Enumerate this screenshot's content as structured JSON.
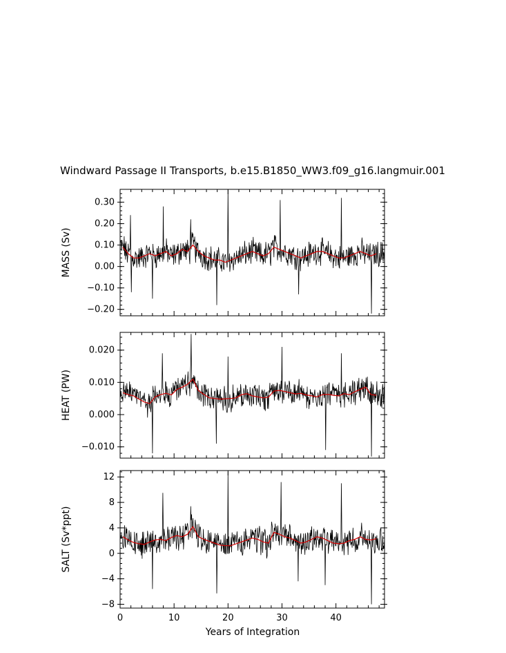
{
  "chart_data": {
    "title": "Windward Passage II Transports, b.e15.B1850_WW3.f09_g16.langmuir.001",
    "xlabel": "Years of Integration",
    "xlim": [
      0,
      49
    ],
    "x_ticks": [
      0,
      10,
      20,
      30,
      40
    ],
    "colors": {
      "monthly": "#000000",
      "annual": "#d40000"
    },
    "panels": [
      {
        "type": "line",
        "ylabel": "MASS (Sv)",
        "ylim": [
          -0.23,
          0.36
        ],
        "y_ticks": [
          -0.2,
          -0.1,
          0.0,
          0.1,
          0.2,
          0.3
        ],
        "y_tick_labels": [
          "−0.20",
          "−0.10",
          "0.00",
          "0.10",
          "0.20",
          "0.30"
        ],
        "annual": [
          0.09,
          0.06,
          0.04,
          0.04,
          0.05,
          0.06,
          0.05,
          0.06,
          0.07,
          0.05,
          0.06,
          0.08,
          0.07,
          0.1,
          0.07,
          0.05,
          0.04,
          0.03,
          0.03,
          0.02,
          0.03,
          0.04,
          0.05,
          0.06,
          0.07,
          0.06,
          0.05,
          0.06,
          0.09,
          0.08,
          0.07,
          0.06,
          0.05,
          0.04,
          0.05,
          0.06,
          0.07,
          0.07,
          0.06,
          0.05,
          0.04,
          0.04,
          0.05,
          0.06,
          0.07,
          0.06,
          0.05,
          0.06
        ],
        "spikes": [
          [
            1.9,
            0.24
          ],
          [
            8.0,
            0.28
          ],
          [
            13.1,
            0.22
          ],
          [
            20.0,
            0.36
          ],
          [
            29.7,
            0.31
          ],
          [
            41.0,
            0.32
          ],
          [
            2.1,
            -0.12
          ],
          [
            6.0,
            -0.15
          ],
          [
            17.9,
            -0.18
          ],
          [
            33.1,
            -0.13
          ],
          [
            46.6,
            -0.22
          ]
        ]
      },
      {
        "type": "line",
        "ylabel": "HEAT (PW)",
        "ylim": [
          -0.0135,
          0.0255
        ],
        "y_ticks": [
          -0.01,
          0.0,
          0.01,
          0.02
        ],
        "y_tick_labels": [
          "−0.010",
          "0.000",
          "0.010",
          "0.020"
        ],
        "annual": [
          0.0068,
          0.0062,
          0.0058,
          0.0048,
          0.0039,
          0.0034,
          0.0055,
          0.0062,
          0.0066,
          0.0061,
          0.0078,
          0.0085,
          0.0094,
          0.011,
          0.0075,
          0.0063,
          0.0052,
          0.005,
          0.0048,
          0.0049,
          0.005,
          0.0052,
          0.0062,
          0.0065,
          0.0058,
          0.0055,
          0.0052,
          0.0054,
          0.0073,
          0.0075,
          0.0072,
          0.0068,
          0.0064,
          0.0066,
          0.0061,
          0.0058,
          0.0055,
          0.0062,
          0.0063,
          0.006,
          0.0058,
          0.0065,
          0.0062,
          0.0071,
          0.0078,
          0.0085,
          0.0062,
          0.006
        ],
        "spikes": [
          [
            13.2,
            0.025
          ],
          [
            7.8,
            0.019
          ],
          [
            30.0,
            0.021
          ],
          [
            41.0,
            0.019
          ],
          [
            20.0,
            0.018
          ],
          [
            6.0,
            -0.012
          ],
          [
            17.8,
            -0.009
          ],
          [
            38.1,
            -0.011
          ],
          [
            46.6,
            -0.013
          ]
        ]
      },
      {
        "type": "line",
        "ylabel": "SALT (Sv*ppt)",
        "ylim": [
          -8.6,
          13.0
        ],
        "y_ticks": [
          -8,
          -4,
          0,
          4,
          8,
          12
        ],
        "y_tick_labels": [
          "−8",
          "−4",
          "0",
          "4",
          "8",
          "12"
        ],
        "annual": [
          2.6,
          2.1,
          1.7,
          1.5,
          1.4,
          1.8,
          2.1,
          2.2,
          2.0,
          2.5,
          2.8,
          2.6,
          3.0,
          4.2,
          2.6,
          2.2,
          1.9,
          1.6,
          1.3,
          1.2,
          1.2,
          1.5,
          1.8,
          2.1,
          2.4,
          2.2,
          1.8,
          1.6,
          3.3,
          3.0,
          2.6,
          2.4,
          2.0,
          1.6,
          1.8,
          2.2,
          2.6,
          2.4,
          2.0,
          1.6,
          1.5,
          1.6,
          2.0,
          2.2,
          2.6,
          2.2,
          2.1,
          2.3
        ],
        "spikes": [
          [
            20.0,
            12.8
          ],
          [
            29.8,
            11.2
          ],
          [
            7.9,
            9.5
          ],
          [
            13.1,
            7.4
          ],
          [
            41.0,
            11.0
          ],
          [
            6.0,
            -5.6
          ],
          [
            17.9,
            -6.3
          ],
          [
            33.0,
            -4.4
          ],
          [
            46.6,
            -8.0
          ],
          [
            38.0,
            -5.0
          ]
        ]
      }
    ]
  }
}
